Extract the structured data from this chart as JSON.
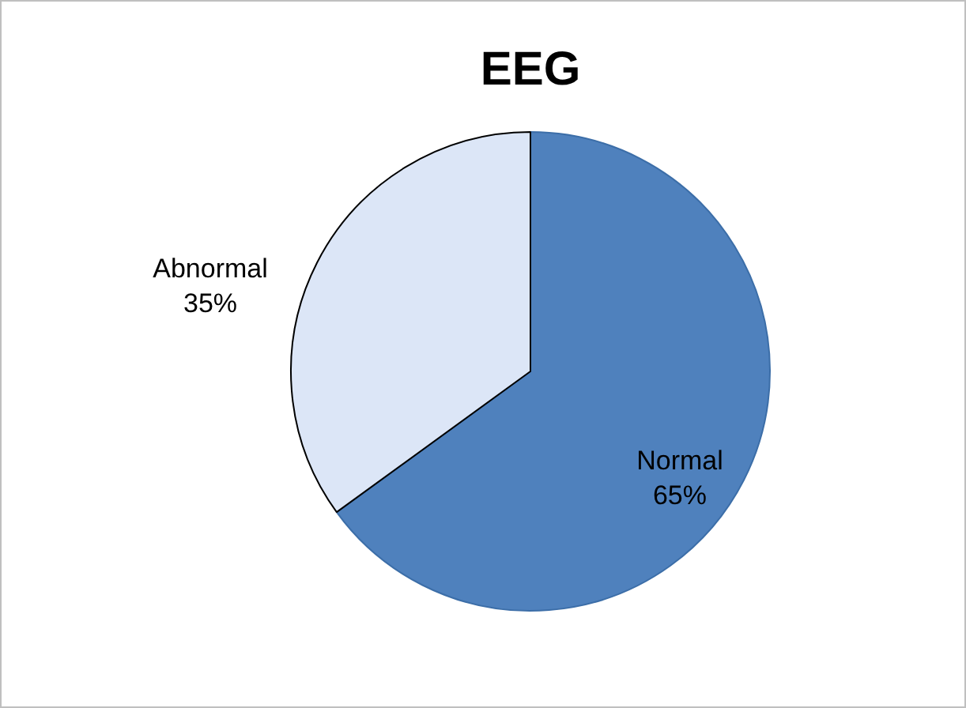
{
  "chart_data": {
    "type": "pie",
    "title": "EEG",
    "categories": [
      "Normal",
      "Abnormal"
    ],
    "values": [
      65,
      35
    ],
    "value_labels": [
      "65%",
      "35%"
    ],
    "colors": [
      "#4f81bd",
      "#dce6f7"
    ],
    "legend": false
  }
}
